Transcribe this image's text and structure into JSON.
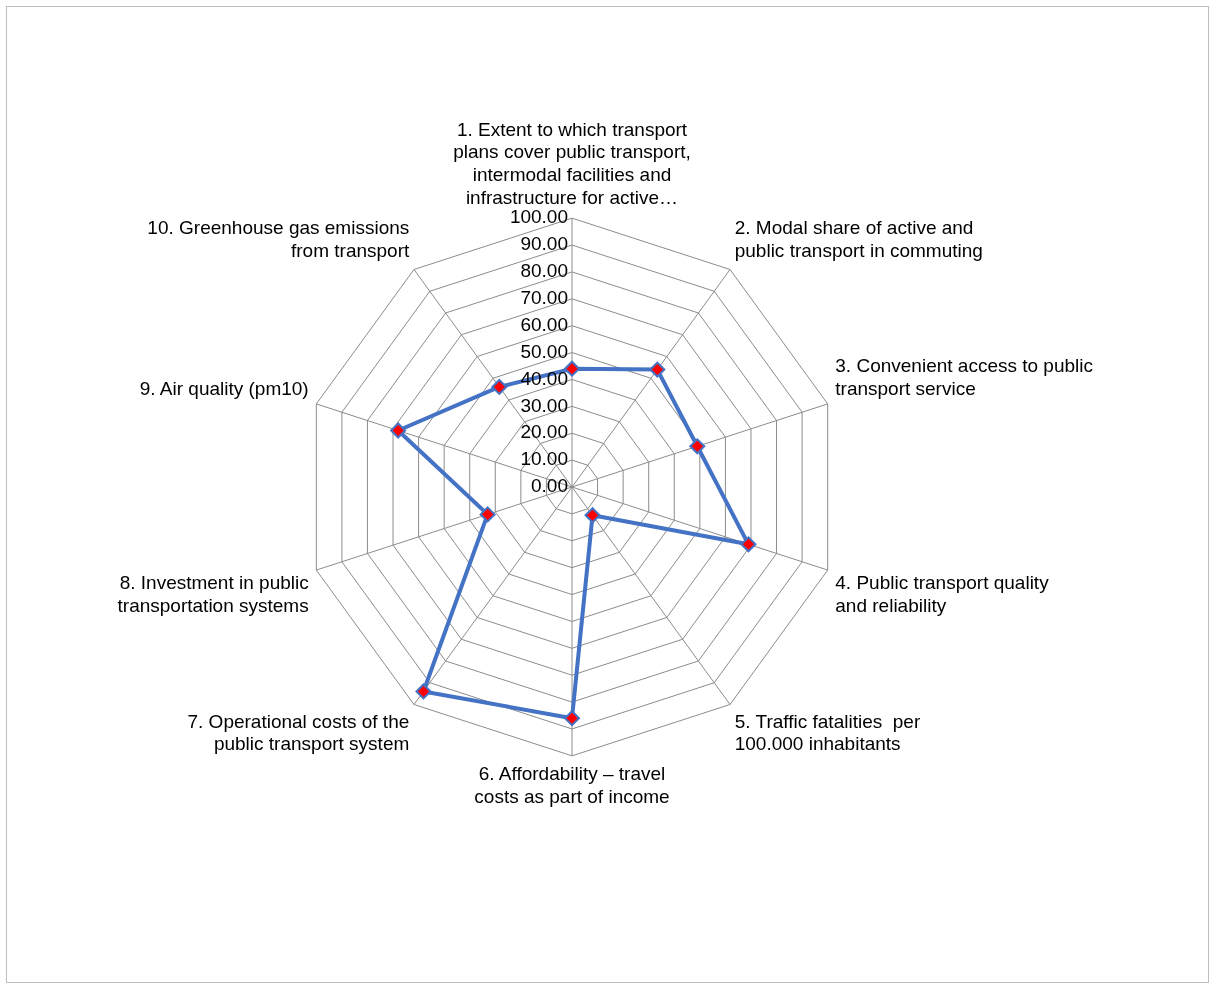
{
  "chart_data": {
    "type": "radar",
    "categories": [
      "1. Extent to which transport plans cover public transport, intermodal facilities and infrastructure for active…",
      "2. Modal share of active and public transport in commuting",
      "3. Convenient access to public transport service",
      "4. Public transport quality and reliability",
      "5. Traffic fatalities  per 100.000 inhabitants",
      "6. Affordability – travel costs as part of income",
      "7. Operational costs of the public transport system",
      "8. Investment in public transportation systems",
      "9. Air quality (pm10)",
      "10. Greenhouse gas emissions from transport"
    ],
    "series": [
      {
        "color": "#4472c4",
        "values": [
          44,
          54,
          49,
          69,
          13,
          86,
          94,
          33,
          68,
          46
        ]
      }
    ],
    "ylim": [
      0,
      100
    ],
    "yticks": [
      {
        "value": 0,
        "label": "0.00"
      },
      {
        "value": 10,
        "label": "10.00"
      },
      {
        "value": 20,
        "label": "20.00"
      },
      {
        "value": 30,
        "label": "30.00"
      },
      {
        "value": 40,
        "label": "40.00"
      },
      {
        "value": 50,
        "label": "50.00"
      },
      {
        "value": 60,
        "label": "60.00"
      },
      {
        "value": 70,
        "label": "70.00"
      },
      {
        "value": 80,
        "label": "80.00"
      },
      {
        "value": 90,
        "label": "90.00"
      },
      {
        "value": 100,
        "label": "100.00"
      }
    ],
    "grid": true,
    "legend": false,
    "marker": "diamond",
    "line_style": "solid"
  }
}
